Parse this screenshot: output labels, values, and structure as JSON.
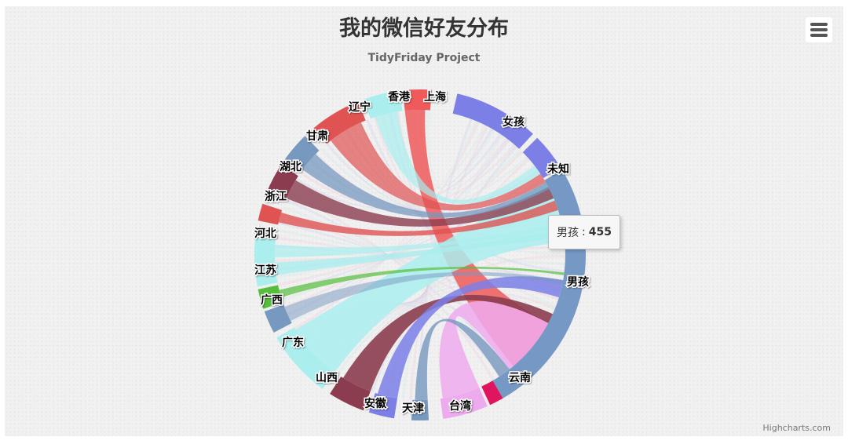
{
  "menu": {
    "icon": "hamburger-menu-icon"
  },
  "credits": "Highcharts.com",
  "tooltip": {
    "name": "男孩",
    "value": "455"
  },
  "chart_data": {
    "type": "dependencywheel",
    "title": "我的微信好友分布",
    "subtitle": "TidyFriday Project",
    "nodes": [
      {
        "name": "女孩",
        "group": "gender",
        "color": "#7b7fe6"
      },
      {
        "name": "未知",
        "group": "gender",
        "color": "#7b7fe6"
      },
      {
        "name": "男孩",
        "group": "gender",
        "color": "#7598c4",
        "value": 455
      },
      {
        "name": "云南",
        "group": "region",
        "color": "#e0155f"
      },
      {
        "name": "台湾",
        "group": "region",
        "color": "#eeaaee"
      },
      {
        "name": "天津",
        "group": "region",
        "color": "#7798bf"
      },
      {
        "name": "安徽",
        "group": "region",
        "color": "#7b7fe6"
      },
      {
        "name": "山西",
        "group": "region",
        "color": "#8b3d4f"
      },
      {
        "name": "广东",
        "group": "region",
        "color": "#aaeeee"
      },
      {
        "name": "广西",
        "group": "region",
        "color": "#7798bf"
      },
      {
        "name": "江苏",
        "group": "region",
        "color": "#55bf3b"
      },
      {
        "name": "河北",
        "group": "region",
        "color": "#aaeeee"
      },
      {
        "name": "浙江",
        "group": "region",
        "color": "#df5353"
      },
      {
        "name": "湖北",
        "group": "region",
        "color": "#8b3d4f"
      },
      {
        "name": "甘肃",
        "group": "region",
        "color": "#7798bf"
      },
      {
        "name": "辽宁",
        "group": "region",
        "color": "#df5353"
      },
      {
        "name": "香港",
        "group": "region",
        "color": "#aaeeee"
      },
      {
        "name": "上海",
        "group": "region",
        "color": "#ef5a5a"
      }
    ]
  }
}
